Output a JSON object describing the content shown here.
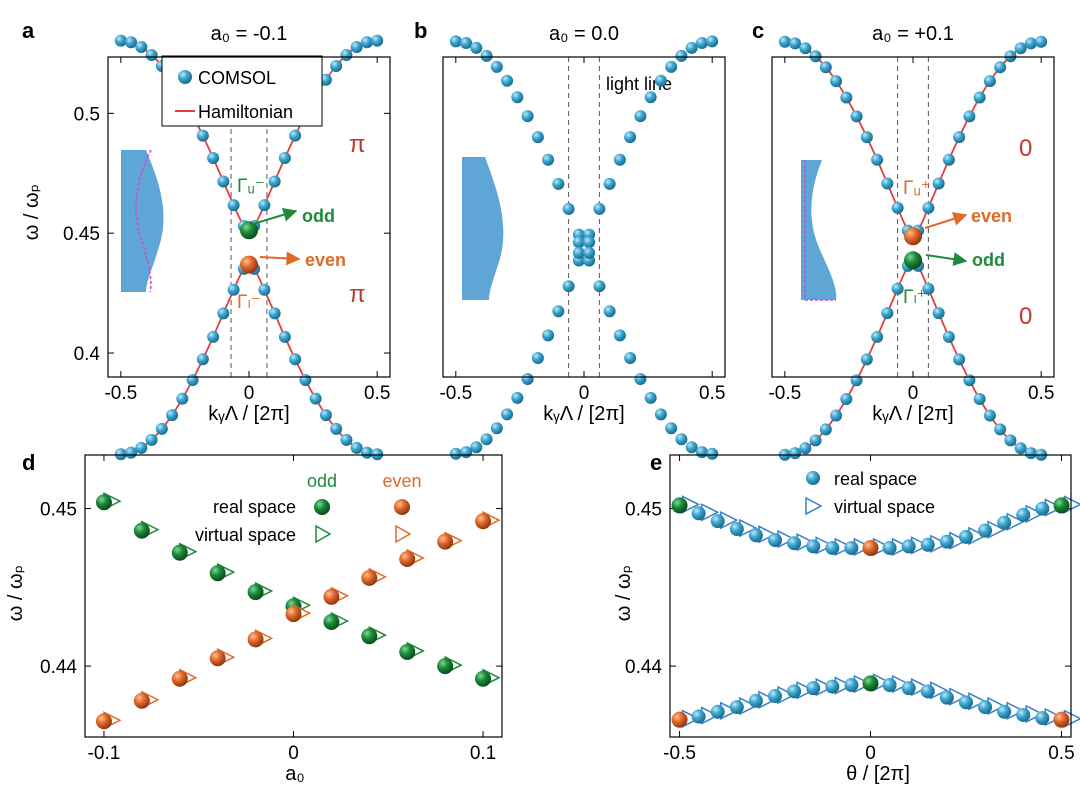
{
  "figure": {
    "colors": {
      "comsol": "#3fa6cf",
      "hamiltonian": "#e0403a",
      "odd": "#1e8a3a",
      "even": "#e06a2a",
      "inset_fill": "#5ea6d6",
      "inset_dash": "#d04ad0",
      "pi_label": "#c0392b",
      "axis": "#000000",
      "dashed_line": "#555555"
    }
  },
  "chart_data": [
    {
      "id": "a",
      "type": "scatter",
      "panel_letter": "a",
      "title": "a₀ = -0.1",
      "xlabel": "kᵧΛ / [2π]",
      "ylabel": "ω / ωₚ",
      "xlim": [
        -0.55,
        0.55
      ],
      "ylim": [
        0.39,
        0.5235
      ],
      "xticks": [
        {
          "v": -0.5,
          "label": "-0.5"
        },
        {
          "v": 0,
          "label": "0"
        },
        {
          "v": 0.5,
          "label": "0.5"
        }
      ],
      "yticks": [
        {
          "v": 0.4,
          "label": "0.4"
        },
        {
          "v": 0.45,
          "label": "0.45"
        },
        {
          "v": 0.5,
          "label": "0.5"
        }
      ],
      "a0": -0.1,
      "legend": {
        "entries": [
          "COMSOL",
          "Hamiltonian"
        ],
        "position": "top-center"
      },
      "annotations": {
        "upper_mode": "Γᵤ⁻",
        "lower_mode": "Γₗ⁻",
        "upper_arrow": "odd",
        "lower_arrow": "even",
        "upper_phase": "π",
        "lower_phase": "π"
      },
      "band_edges": {
        "upper": 0.4512,
        "lower": 0.4369
      },
      "light_line_k": [
        -0.07,
        0.07
      ]
    },
    {
      "id": "b",
      "type": "scatter",
      "panel_letter": "b",
      "title": "a₀ = 0.0",
      "xlabel": "kᵧΛ / [2π]",
      "xlim": [
        -0.55,
        0.55
      ],
      "ylim": [
        0.39,
        0.5235
      ],
      "xticks": [
        {
          "v": -0.5,
          "label": "-0.5"
        },
        {
          "v": 0,
          "label": "0"
        },
        {
          "v": 0.5,
          "label": "0.5"
        }
      ],
      "a0": 0.0,
      "annotations": {
        "light_line": "light line"
      },
      "band_edges": {
        "upper": 0.444,
        "lower": 0.444
      },
      "light_line_k": [
        -0.06,
        0.06
      ]
    },
    {
      "id": "c",
      "type": "scatter",
      "panel_letter": "c",
      "title": "a₀ = +0.1",
      "xlabel": "kᵧΛ / [2π]",
      "xlim": [
        -0.55,
        0.55
      ],
      "ylim": [
        0.39,
        0.5235
      ],
      "xticks": [
        {
          "v": -0.5,
          "label": "-0.5"
        },
        {
          "v": 0,
          "label": "0"
        },
        {
          "v": 0.5,
          "label": "0.5"
        }
      ],
      "a0": 0.1,
      "annotations": {
        "upper_mode": "Γᵤ⁺",
        "lower_mode": "Γₗ⁺",
        "upper_arrow": "even",
        "lower_arrow": "odd",
        "upper_phase": "0",
        "lower_phase": "0"
      },
      "band_edges": {
        "upper": 0.4487,
        "lower": 0.4387
      },
      "light_line_k": [
        -0.06,
        0.06
      ]
    },
    {
      "id": "d",
      "type": "scatter",
      "panel_letter": "d",
      "xlabel": "a₀",
      "ylabel": "ω / ωₚ",
      "xlim": [
        -0.11,
        0.11
      ],
      "ylim": [
        0.4355,
        0.4534
      ],
      "xticks": [
        {
          "v": -0.1,
          "label": "-0.1"
        },
        {
          "v": 0,
          "label": "0"
        },
        {
          "v": 0.1,
          "label": "0.1"
        }
      ],
      "yticks": [
        {
          "v": 0.44,
          "label": "0.44"
        },
        {
          "v": 0.45,
          "label": "0.45"
        }
      ],
      "legend": {
        "col_odd": "odd",
        "col_even": "even",
        "row_real": "real space",
        "row_virtual": "virtual space"
      },
      "x": [
        -0.1,
        -0.08,
        -0.06,
        -0.04,
        -0.02,
        0,
        0.02,
        0.04,
        0.06,
        0.08,
        0.1
      ],
      "series": [
        {
          "name": "odd",
          "values": [
            0.4504,
            0.4486,
            0.4472,
            0.4459,
            0.4447,
            0.4438,
            0.4428,
            0.4419,
            0.4409,
            0.44,
            0.4392
          ]
        },
        {
          "name": "even",
          "values": [
            0.4365,
            0.4378,
            0.4392,
            0.4405,
            0.4417,
            0.4433,
            0.4444,
            0.4456,
            0.4468,
            0.4479,
            0.4492
          ]
        }
      ]
    },
    {
      "id": "e",
      "type": "scatter",
      "panel_letter": "e",
      "xlabel": "θ / [2π]",
      "ylabel": "ω / ωₚ",
      "xlim": [
        -0.525,
        0.525
      ],
      "ylim": [
        0.4355,
        0.4534
      ],
      "xticks": [
        {
          "v": -0.5,
          "label": "-0.5"
        },
        {
          "v": 0,
          "label": "0"
        },
        {
          "v": 0.5,
          "label": "0.5"
        }
      ],
      "yticks": [
        {
          "v": 0.44,
          "label": "0.44"
        },
        {
          "v": 0.45,
          "label": "0.45"
        }
      ],
      "legend": {
        "entries": [
          "real space",
          "virtual space"
        ],
        "position": "top-center"
      },
      "x": [
        -0.5,
        -0.45,
        -0.4,
        -0.35,
        -0.3,
        -0.25,
        -0.2,
        -0.15,
        -0.1,
        -0.05,
        0,
        0.05,
        0.1,
        0.15,
        0.2,
        0.25,
        0.3,
        0.35,
        0.4,
        0.45,
        0.5
      ],
      "series": [
        {
          "name": "upper",
          "values": [
            0.4502,
            0.4497,
            0.4492,
            0.4487,
            0.4483,
            0.448,
            0.4478,
            0.4476,
            0.4475,
            0.4475,
            0.4475,
            0.4475,
            0.4476,
            0.4477,
            0.4479,
            0.4482,
            0.4486,
            0.4491,
            0.4496,
            0.45,
            0.4502
          ]
        },
        {
          "name": "lower",
          "values": [
            0.4366,
            0.4368,
            0.4371,
            0.4374,
            0.4378,
            0.4381,
            0.4384,
            0.4386,
            0.4387,
            0.4388,
            0.4389,
            0.4388,
            0.4386,
            0.4384,
            0.438,
            0.4377,
            0.4374,
            0.4371,
            0.4369,
            0.4367,
            0.4366
          ]
        }
      ],
      "highlight": {
        "upper_green_x": [
          -0.5,
          0.5
        ],
        "upper_orange_x": [
          0
        ],
        "lower_orange_x": [
          -0.5,
          0.5
        ],
        "lower_green_x": [
          0
        ]
      }
    }
  ]
}
